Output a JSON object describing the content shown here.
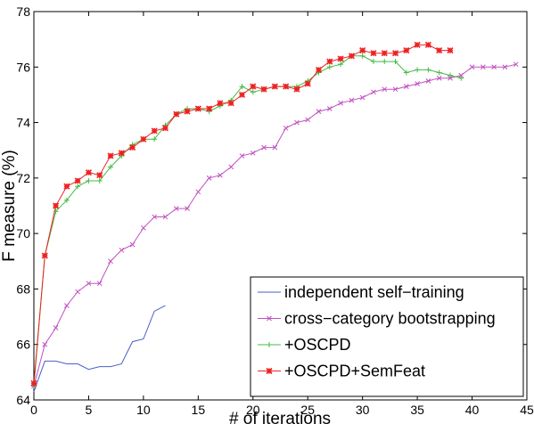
{
  "chart_data": {
    "type": "line",
    "xlabel": "# of iterations",
    "ylabel": "F measure (%)",
    "xlim": [
      0,
      45
    ],
    "ylim": [
      64,
      78
    ],
    "xticks": [
      0,
      5,
      10,
      15,
      20,
      25,
      30,
      35,
      40,
      45
    ],
    "yticks": [
      64,
      66,
      68,
      70,
      72,
      74,
      76,
      78
    ],
    "grid": false,
    "legend_position": "bottom-right",
    "series": [
      {
        "name": "independent self−training",
        "color": "#4a5fc8",
        "marker": "none",
        "x": [
          0,
          1,
          2,
          3,
          4,
          5,
          6,
          7,
          8,
          9,
          10,
          11,
          12
        ],
        "y": [
          64.3,
          65.4,
          65.4,
          65.3,
          65.3,
          65.1,
          65.2,
          65.2,
          65.3,
          66.1,
          66.2,
          67.2,
          67.4
        ]
      },
      {
        "name": "cross−category bootstrapping",
        "color": "#c050c0",
        "marker": "x",
        "x": [
          0,
          1,
          2,
          3,
          4,
          5,
          6,
          7,
          8,
          9,
          10,
          11,
          12,
          13,
          14,
          15,
          16,
          17,
          18,
          19,
          20,
          21,
          22,
          23,
          24,
          25,
          26,
          27,
          28,
          29,
          30,
          31,
          32,
          33,
          34,
          35,
          36,
          37,
          38,
          39,
          40,
          41,
          42,
          43,
          44
        ],
        "y": [
          64.5,
          66.0,
          66.6,
          67.4,
          67.9,
          68.2,
          68.2,
          69.0,
          69.4,
          69.6,
          70.2,
          70.6,
          70.6,
          70.9,
          70.9,
          71.5,
          72.0,
          72.1,
          72.4,
          72.8,
          72.9,
          73.1,
          73.1,
          73.8,
          74.0,
          74.1,
          74.4,
          74.5,
          74.7,
          74.8,
          74.9,
          75.1,
          75.2,
          75.2,
          75.3,
          75.4,
          75.5,
          75.6,
          75.6,
          75.7,
          76.0,
          76.0,
          76.0,
          76.0,
          76.1
        ]
      },
      {
        "name": "+OSCPD",
        "color": "#44bb44",
        "marker": "plus",
        "x": [
          0,
          1,
          2,
          3,
          4,
          5,
          6,
          7,
          8,
          9,
          10,
          11,
          12,
          13,
          14,
          15,
          16,
          17,
          18,
          19,
          20,
          21,
          22,
          23,
          24,
          25,
          26,
          27,
          28,
          29,
          30,
          31,
          32,
          33,
          34,
          35,
          36,
          37,
          38,
          39
        ],
        "y": [
          64.5,
          69.2,
          70.8,
          71.2,
          71.7,
          71.9,
          71.9,
          72.4,
          72.8,
          73.2,
          73.4,
          73.4,
          73.9,
          74.3,
          74.5,
          74.5,
          74.4,
          74.6,
          74.8,
          75.3,
          75.1,
          75.2,
          75.3,
          75.3,
          75.3,
          75.5,
          75.8,
          76.0,
          76.1,
          76.4,
          76.4,
          76.2,
          76.2,
          76.2,
          75.8,
          75.9,
          75.9,
          75.8,
          75.7,
          75.6
        ]
      },
      {
        "name": "+OSCPD+SemFeat",
        "color": "#ee2222",
        "marker": "star",
        "x": [
          0,
          1,
          2,
          3,
          4,
          5,
          6,
          7,
          8,
          9,
          10,
          11,
          12,
          13,
          14,
          15,
          16,
          17,
          18,
          19,
          20,
          21,
          22,
          23,
          24,
          25,
          26,
          27,
          28,
          29,
          30,
          31,
          32,
          33,
          34,
          35,
          36,
          37,
          38
        ],
        "y": [
          64.6,
          69.2,
          71.0,
          71.7,
          71.9,
          72.2,
          72.1,
          72.8,
          72.9,
          73.1,
          73.4,
          73.7,
          73.8,
          74.3,
          74.4,
          74.5,
          74.5,
          74.7,
          74.7,
          75.0,
          75.3,
          75.2,
          75.3,
          75.3,
          75.2,
          75.4,
          75.9,
          76.2,
          76.3,
          76.4,
          76.6,
          76.5,
          76.5,
          76.5,
          76.6,
          76.8,
          76.8,
          76.6,
          76.6
        ]
      }
    ]
  }
}
